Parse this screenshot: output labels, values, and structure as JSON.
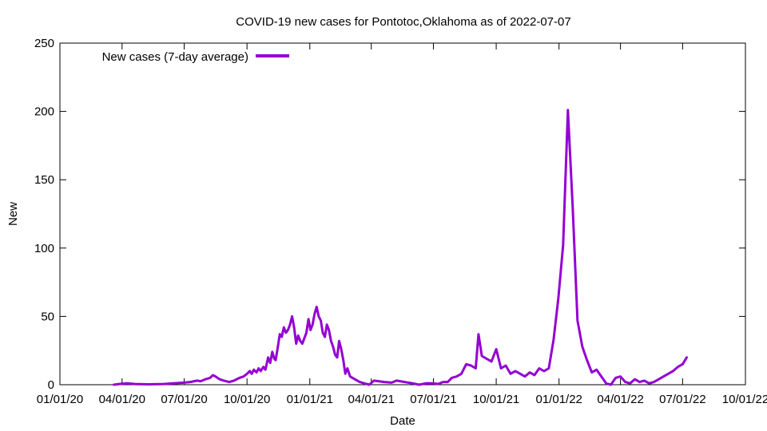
{
  "chart_data": {
    "type": "line",
    "title": "COVID-19 new cases for Pontotoc,Oklahoma as of 2022-07-07",
    "xlabel": "Date",
    "ylabel": "New",
    "x_tick_labels": [
      "01/01/20",
      "04/01/20",
      "07/01/20",
      "10/01/20",
      "01/01/21",
      "04/01/21",
      "07/01/21",
      "10/01/21",
      "01/01/22",
      "04/01/22",
      "07/01/22",
      "10/01/22"
    ],
    "y_tick_labels": [
      "0",
      "50",
      "100",
      "150",
      "200",
      "250"
    ],
    "xlim": [
      "2020-01-01",
      "2022-10-01"
    ],
    "ylim": [
      0,
      250
    ],
    "grid": false,
    "legend_position": "top-left",
    "series": [
      {
        "name": "New cases (7-day average)",
        "color": "#9400d3",
        "points": [
          [
            "2020-03-20",
            0
          ],
          [
            "2020-03-28",
            0.5
          ],
          [
            "2020-04-08",
            1
          ],
          [
            "2020-04-20",
            0.5
          ],
          [
            "2020-05-10",
            0.3
          ],
          [
            "2020-06-01",
            0.5
          ],
          [
            "2020-06-15",
            1
          ],
          [
            "2020-07-01",
            1.5
          ],
          [
            "2020-07-10",
            2
          ],
          [
            "2020-07-20",
            3
          ],
          [
            "2020-07-25",
            2.5
          ],
          [
            "2020-08-01",
            4
          ],
          [
            "2020-08-08",
            5
          ],
          [
            "2020-08-12",
            7
          ],
          [
            "2020-08-16",
            6
          ],
          [
            "2020-08-22",
            4
          ],
          [
            "2020-08-28",
            3
          ],
          [
            "2020-09-05",
            2
          ],
          [
            "2020-09-12",
            3
          ],
          [
            "2020-09-20",
            5
          ],
          [
            "2020-09-26",
            6
          ],
          [
            "2020-10-01",
            8
          ],
          [
            "2020-10-05",
            10
          ],
          [
            "2020-10-08",
            8
          ],
          [
            "2020-10-11",
            11
          ],
          [
            "2020-10-15",
            9
          ],
          [
            "2020-10-18",
            12
          ],
          [
            "2020-10-21",
            10
          ],
          [
            "2020-10-25",
            13
          ],
          [
            "2020-10-28",
            11
          ],
          [
            "2020-11-01",
            20
          ],
          [
            "2020-11-04",
            16
          ],
          [
            "2020-11-07",
            24
          ],
          [
            "2020-11-10",
            19
          ],
          [
            "2020-11-12",
            18
          ],
          [
            "2020-11-15",
            27
          ],
          [
            "2020-11-18",
            37
          ],
          [
            "2020-11-21",
            35
          ],
          [
            "2020-11-24",
            42
          ],
          [
            "2020-11-27",
            38
          ],
          [
            "2020-11-30",
            40
          ],
          [
            "2020-12-03",
            44
          ],
          [
            "2020-12-06",
            50
          ],
          [
            "2020-12-09",
            42
          ],
          [
            "2020-12-12",
            30
          ],
          [
            "2020-12-15",
            36
          ],
          [
            "2020-12-18",
            32
          ],
          [
            "2020-12-21",
            30
          ],
          [
            "2020-12-24",
            34
          ],
          [
            "2020-12-27",
            38
          ],
          [
            "2020-12-30",
            48
          ],
          [
            "2021-01-02",
            40
          ],
          [
            "2021-01-05",
            44
          ],
          [
            "2021-01-08",
            52
          ],
          [
            "2021-01-11",
            57
          ],
          [
            "2021-01-14",
            50
          ],
          [
            "2021-01-17",
            47
          ],
          [
            "2021-01-20",
            38
          ],
          [
            "2021-01-23",
            35
          ],
          [
            "2021-01-26",
            44
          ],
          [
            "2021-01-29",
            40
          ],
          [
            "2021-02-01",
            32
          ],
          [
            "2021-02-04",
            28
          ],
          [
            "2021-02-07",
            22
          ],
          [
            "2021-02-10",
            20
          ],
          [
            "2021-02-13",
            32
          ],
          [
            "2021-02-16",
            26
          ],
          [
            "2021-02-19",
            18
          ],
          [
            "2021-02-22",
            8
          ],
          [
            "2021-02-25",
            12
          ],
          [
            "2021-03-01",
            6
          ],
          [
            "2021-03-08",
            4
          ],
          [
            "2021-03-15",
            2
          ],
          [
            "2021-03-22",
            1
          ],
          [
            "2021-03-29",
            0
          ],
          [
            "2021-04-05",
            3
          ],
          [
            "2021-04-20",
            2
          ],
          [
            "2021-05-01",
            1.5
          ],
          [
            "2021-05-08",
            3
          ],
          [
            "2021-05-20",
            2
          ],
          [
            "2021-06-01",
            1
          ],
          [
            "2021-06-10",
            0
          ],
          [
            "2021-06-20",
            1
          ],
          [
            "2021-07-01",
            1
          ],
          [
            "2021-07-08",
            0.5
          ],
          [
            "2021-07-15",
            2
          ],
          [
            "2021-07-22",
            2
          ],
          [
            "2021-07-28",
            5
          ],
          [
            "2021-08-04",
            6
          ],
          [
            "2021-08-11",
            8
          ],
          [
            "2021-08-18",
            15
          ],
          [
            "2021-08-25",
            14
          ],
          [
            "2021-09-01",
            12
          ],
          [
            "2021-09-05",
            37
          ],
          [
            "2021-09-10",
            21
          ],
          [
            "2021-09-17",
            19
          ],
          [
            "2021-09-24",
            17
          ],
          [
            "2021-10-01",
            26
          ],
          [
            "2021-10-08",
            12
          ],
          [
            "2021-10-15",
            14
          ],
          [
            "2021-10-22",
            8
          ],
          [
            "2021-10-29",
            10
          ],
          [
            "2021-11-05",
            8
          ],
          [
            "2021-11-12",
            6
          ],
          [
            "2021-11-19",
            9
          ],
          [
            "2021-11-26",
            7
          ],
          [
            "2021-12-03",
            12
          ],
          [
            "2021-12-10",
            10
          ],
          [
            "2021-12-17",
            12
          ],
          [
            "2021-12-24",
            33
          ],
          [
            "2021-12-31",
            63
          ],
          [
            "2022-01-07",
            102
          ],
          [
            "2022-01-14",
            201
          ],
          [
            "2022-01-21",
            130
          ],
          [
            "2022-01-28",
            47
          ],
          [
            "2022-02-04",
            28
          ],
          [
            "2022-02-11",
            18
          ],
          [
            "2022-02-18",
            9
          ],
          [
            "2022-02-25",
            11
          ],
          [
            "2022-03-04",
            6
          ],
          [
            "2022-03-11",
            1
          ],
          [
            "2022-03-18",
            0
          ],
          [
            "2022-03-25",
            5
          ],
          [
            "2022-04-01",
            6
          ],
          [
            "2022-04-08",
            2
          ],
          [
            "2022-04-15",
            1
          ],
          [
            "2022-04-22",
            4
          ],
          [
            "2022-04-29",
            2
          ],
          [
            "2022-05-06",
            3
          ],
          [
            "2022-05-13",
            1
          ],
          [
            "2022-05-20",
            2
          ],
          [
            "2022-05-27",
            4
          ],
          [
            "2022-06-03",
            6
          ],
          [
            "2022-06-10",
            8
          ],
          [
            "2022-06-17",
            10
          ],
          [
            "2022-06-24",
            13
          ],
          [
            "2022-07-01",
            15
          ],
          [
            "2022-07-07",
            20
          ]
        ]
      }
    ]
  }
}
